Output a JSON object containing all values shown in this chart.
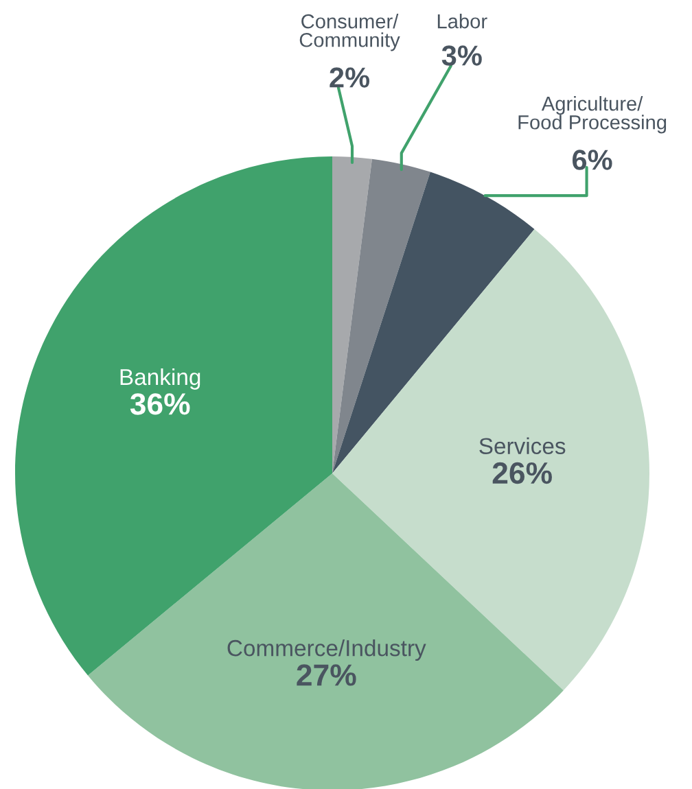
{
  "chart_data": {
    "type": "pie",
    "categories": [
      "Consumer/\nCommunity",
      "Labor",
      "Agriculture/\nFood Processing",
      "Services",
      "Commerce/Industry",
      "Banking"
    ],
    "values": [
      2,
      3,
      6,
      26,
      27,
      36
    ],
    "value_labels": [
      "2%",
      "3%",
      "6%",
      "26%",
      "27%",
      "36%"
    ],
    "colors": [
      "#a7a9ac",
      "#80868d",
      "#445462",
      "#c6ddcc",
      "#90c29f",
      "#40a26c"
    ],
    "legend": false
  }
}
